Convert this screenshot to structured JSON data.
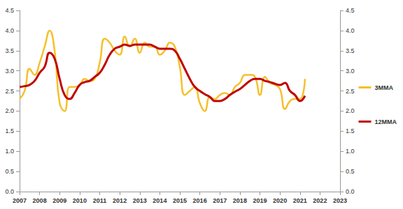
{
  "chart_data": {
    "type": "line",
    "x": [
      2007,
      2007.25,
      2007.5,
      2007.75,
      2008,
      2008.25,
      2008.5,
      2008.75,
      2009,
      2009.25,
      2009.5,
      2009.75,
      2010,
      2010.25,
      2010.5,
      2010.75,
      2011,
      2011.25,
      2011.5,
      2011.75,
      2012,
      2012.25,
      2012.5,
      2012.75,
      2013,
      2013.25,
      2013.5,
      2013.75,
      2014,
      2014.25,
      2014.5,
      2014.75,
      2015,
      2015.25,
      2015.5,
      2015.75,
      2016,
      2016.25,
      2016.5,
      2016.75,
      2017,
      2017.25,
      2017.5,
      2017.75,
      2018,
      2018.25,
      2018.5,
      2018.75,
      2019,
      2019.25,
      2019.5,
      2019.75,
      2020,
      2020.25,
      2020.5,
      2020.75,
      2021,
      2021.25
    ],
    "series": [
      {
        "name": "3MMA",
        "color": "#f5c02a",
        "line_style": "smooth",
        "values": [
          2.3,
          2.5,
          3.05,
          2.9,
          3.2,
          3.6,
          4.0,
          3.5,
          2.2,
          2.0,
          2.6,
          2.6,
          2.65,
          2.8,
          2.75,
          2.8,
          3.2,
          3.8,
          3.7,
          3.5,
          3.4,
          3.85,
          3.6,
          3.8,
          3.45,
          3.7,
          3.6,
          3.6,
          3.4,
          3.5,
          3.7,
          3.6,
          3.1,
          2.4,
          2.5,
          2.6,
          2.2,
          2.0,
          2.35,
          2.3,
          2.4,
          2.45,
          2.4,
          2.6,
          2.7,
          2.9,
          2.9,
          2.85,
          2.4,
          2.85,
          2.7,
          2.65,
          2.55,
          2.05,
          2.25,
          2.3,
          2.3,
          2.8
        ]
      },
      {
        "name": "12MMA",
        "color": "#c00000",
        "line_style": "smooth",
        "values": [
          2.6,
          2.62,
          2.65,
          2.75,
          2.95,
          3.1,
          3.45,
          3.3,
          2.8,
          2.4,
          2.3,
          2.45,
          2.65,
          2.72,
          2.75,
          2.85,
          2.95,
          3.15,
          3.4,
          3.55,
          3.6,
          3.65,
          3.62,
          3.65,
          3.65,
          3.65,
          3.65,
          3.6,
          3.55,
          3.55,
          3.55,
          3.5,
          3.3,
          3.05,
          2.8,
          2.6,
          2.5,
          2.42,
          2.35,
          2.25,
          2.25,
          2.3,
          2.4,
          2.48,
          2.55,
          2.65,
          2.75,
          2.8,
          2.8,
          2.75,
          2.72,
          2.68,
          2.65,
          2.7,
          2.5,
          2.4,
          2.25,
          2.38
        ]
      }
    ],
    "xlim": [
      2007,
      2023
    ],
    "xticks": [
      2007,
      2008,
      2009,
      2010,
      2011,
      2012,
      2013,
      2014,
      2015,
      2016,
      2017,
      2018,
      2019,
      2020,
      2021,
      2022,
      2023
    ],
    "ylim": [
      0,
      4.5
    ],
    "yticks": [
      {
        "value": 0,
        "label": "0.0"
      },
      0.5,
      {
        "value": 1,
        "label": "1.0"
      },
      1.5,
      {
        "value": 2,
        "label": "2.0"
      },
      2.5,
      {
        "value": 3,
        "label": "3.0"
      },
      3.5,
      {
        "value": 4,
        "label": "4.0"
      },
      4.5
    ],
    "y2lim": [
      0,
      4.5
    ],
    "y2ticks": [
      {
        "value": 0,
        "label": "0.0"
      },
      0.5,
      {
        "value": 1,
        "label": "1.0"
      },
      1.5,
      {
        "value": 2,
        "label": "2.0"
      },
      2.5,
      {
        "value": 3,
        "label": "3.0"
      },
      3.5,
      {
        "value": 4,
        "label": "4.0"
      },
      4.5
    ],
    "grid": false,
    "legend": "right"
  }
}
